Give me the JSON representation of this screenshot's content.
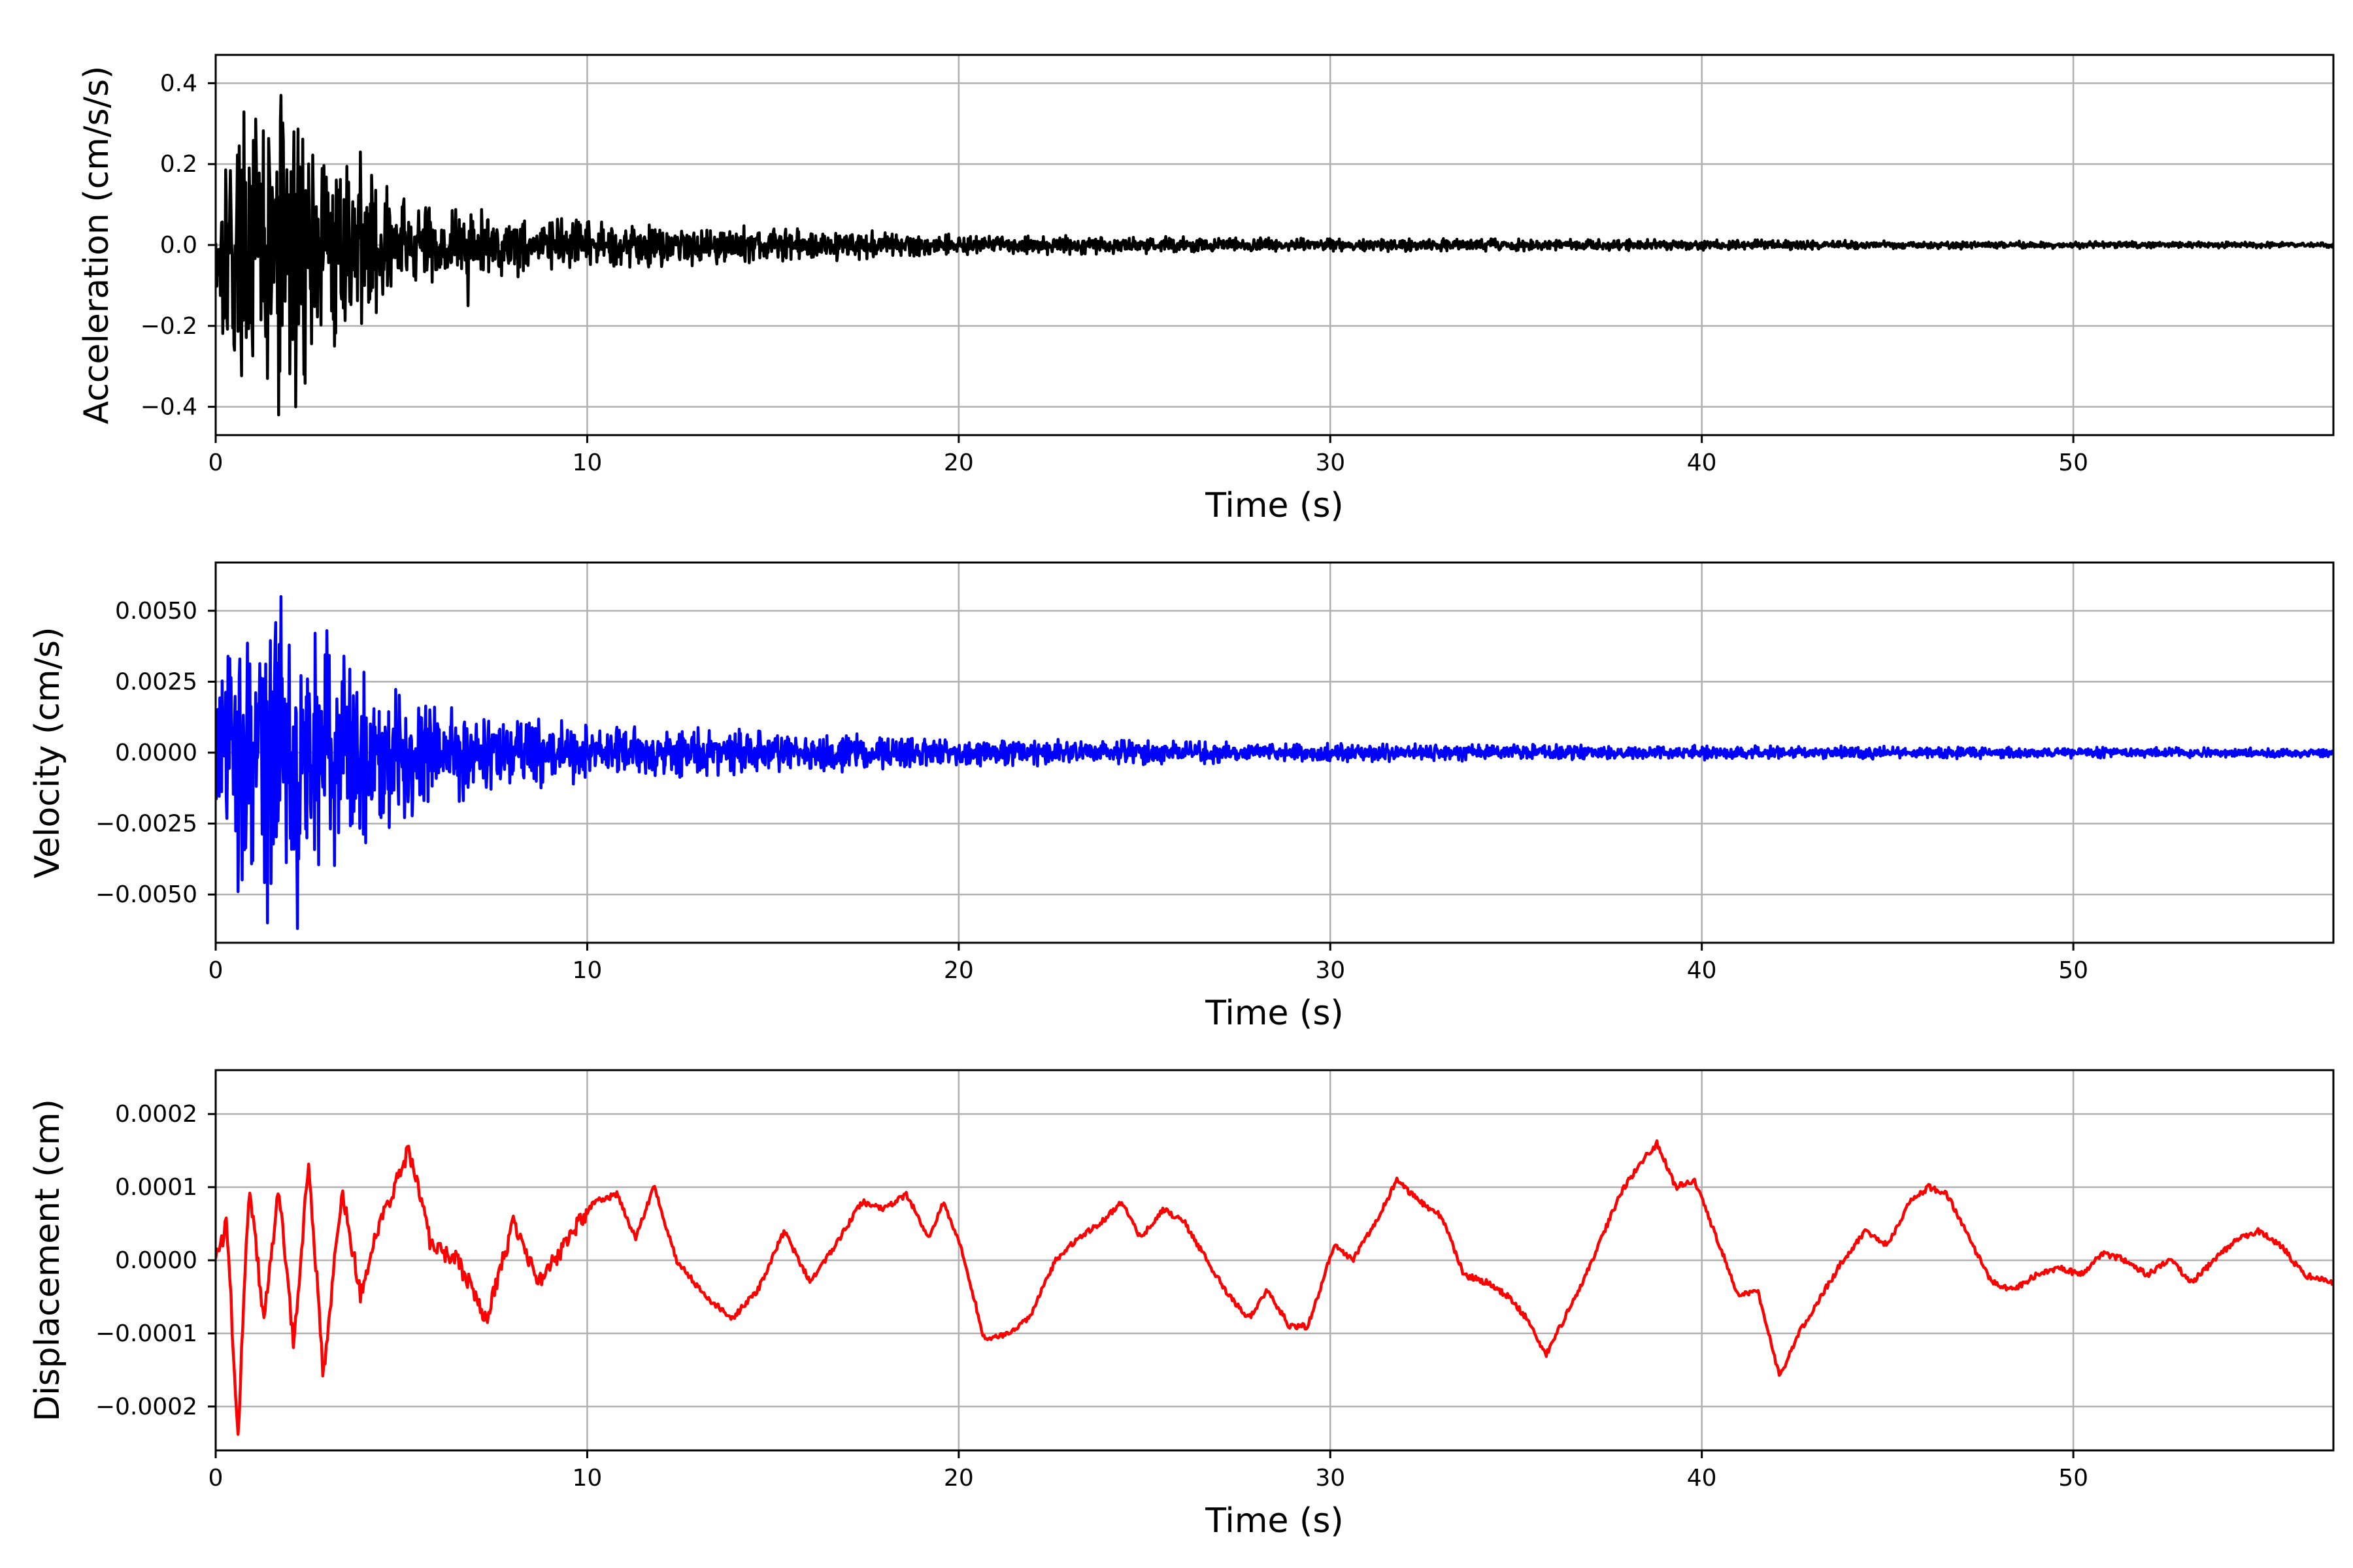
{
  "chart_data": [
    {
      "type": "line",
      "xlabel": "Time (s)",
      "ylabel": "Acceleration (cm/s/s)",
      "xlim": [
        0,
        57
      ],
      "ylim": [
        -0.47,
        0.47
      ],
      "x_ticks": [
        0,
        10,
        20,
        30,
        40,
        50
      ],
      "y_ticks": [
        -0.4,
        -0.2,
        0.0,
        0.2,
        0.4
      ],
      "y_tick_labels": [
        "−0.4",
        "−0.2",
        "0.0",
        "0.2",
        "0.4"
      ],
      "grid": true,
      "line_color": "#000000",
      "envelope": {
        "t": [
          0,
          1,
          2,
          3,
          4,
          5,
          7,
          10,
          15,
          20,
          30,
          40,
          50,
          57
        ],
        "amp": [
          0.2,
          0.27,
          0.32,
          0.18,
          0.15,
          0.1,
          0.07,
          0.045,
          0.035,
          0.02,
          0.013,
          0.01,
          0.007,
          0.005
        ]
      },
      "peaks": [
        {
          "x": 1.75,
          "y": 0.37
        },
        {
          "x": 2.1,
          "y": 0.28
        },
        {
          "x": 3.9,
          "y": 0.23
        },
        {
          "x": 1.7,
          "y": -0.42
        },
        {
          "x": 2.15,
          "y": -0.4
        },
        {
          "x": 1.4,
          "y": -0.33
        },
        {
          "x": 3.2,
          "y": -0.25
        },
        {
          "x": 6.8,
          "y": -0.15
        },
        {
          "x": 0.5,
          "y": -0.26
        }
      ]
    },
    {
      "type": "line",
      "xlabel": "Time (s)",
      "ylabel": "Velocity (cm/s)",
      "xlim": [
        0,
        57
      ],
      "ylim": [
        -0.0067,
        0.0067
      ],
      "x_ticks": [
        0,
        10,
        20,
        30,
        40,
        50
      ],
      "y_ticks": [
        -0.005,
        -0.0025,
        0.0,
        0.0025,
        0.005
      ],
      "y_tick_labels": [
        "−0.0050",
        "−0.0025",
        "0.0000",
        "0.0025",
        "0.0050"
      ],
      "grid": true,
      "line_color": "#0000ff",
      "envelope": {
        "t": [
          0,
          1,
          2,
          3,
          4,
          5,
          7,
          10,
          15,
          20,
          30,
          40,
          50,
          57
        ],
        "amp": [
          0.0025,
          0.0042,
          0.0044,
          0.0032,
          0.0025,
          0.0018,
          0.0012,
          0.0008,
          0.0006,
          0.0004,
          0.00025,
          0.0002,
          0.00015,
          0.00012
        ]
      },
      "peaks": [
        {
          "x": 0.6,
          "y": 0.0058
        },
        {
          "x": 1.75,
          "y": 0.0055
        },
        {
          "x": 3.0,
          "y": 0.0043
        },
        {
          "x": 1.4,
          "y": -0.006
        },
        {
          "x": 2.2,
          "y": -0.0062
        },
        {
          "x": 0.6,
          "y": -0.0049
        }
      ]
    },
    {
      "type": "line",
      "xlabel": "Time (s)",
      "ylabel": "Displacement (cm)",
      "xlim": [
        0,
        57
      ],
      "ylim": [
        -0.00026,
        0.00026
      ],
      "x_ticks": [
        0,
        10,
        20,
        30,
        40,
        50
      ],
      "y_ticks": [
        -0.0002,
        -0.0001,
        0.0,
        0.0001,
        0.0002
      ],
      "y_tick_labels": [
        "−0.0002",
        "−0.0001",
        "0.0000",
        "0.0001",
        "0.0002"
      ],
      "grid": true,
      "line_color": "#ff0000",
      "x": [
        0,
        0.3,
        0.6,
        0.9,
        1.3,
        1.7,
        2.1,
        2.5,
        2.9,
        3.4,
        3.9,
        4.4,
        5.2,
        5.8,
        6.5,
        7.3,
        8.0,
        8.7,
        9.5,
        10.2,
        10.8,
        11.3,
        11.8,
        12.4,
        13.2,
        13.9,
        14.6,
        15.3,
        16.0,
        16.8,
        17.4,
        18.0,
        18.6,
        19.2,
        19.6,
        20.1,
        20.7,
        21.3,
        21.9,
        22.6,
        23.2,
        23.8,
        24.4,
        24.9,
        25.5,
        26.1,
        26.8,
        27.3,
        27.8,
        28.3,
        28.9,
        29.4,
        30.1,
        30.6,
        31.2,
        31.8,
        32.4,
        33.0,
        33.6,
        34.2,
        34.8,
        35.3,
        35.8,
        36.3,
        36.8,
        37.3,
        37.8,
        38.3,
        38.8,
        39.3,
        39.8,
        40.4,
        41.0,
        41.5,
        42.1,
        42.6,
        43.2,
        43.8,
        44.4,
        45.0,
        45.6,
        46.1,
        46.6,
        47.2,
        47.8,
        48.4,
        49.0,
        49.6,
        50.2,
        50.8,
        51.4,
        52.0,
        52.6,
        53.2,
        53.8,
        54.4,
        55.0,
        55.6,
        56.2,
        57.0
      ],
      "y": [
        0.0,
        5e-05,
        -0.00024,
        0.0001,
        -8e-05,
        0.0001,
        -0.00012,
        0.00014,
        -0.00016,
        0.0001,
        -5e-05,
        5e-05,
        0.00015,
        2e-05,
        0.0,
        -8e-05,
        5e-05,
        -3e-05,
        3e-05,
        8e-05,
        9e-05,
        3e-05,
        0.0001,
        0.0,
        -5e-05,
        -8e-05,
        -4e-05,
        4e-05,
        -3e-05,
        3e-05,
        8e-05,
        7e-05,
        9e-05,
        3e-05,
        8e-05,
        1e-05,
        -0.00011,
        -0.0001,
        -8e-05,
        0.0,
        3e-05,
        5e-05,
        8e-05,
        3e-05,
        7e-05,
        5e-05,
        -1e-05,
        -5e-05,
        -8e-05,
        -4e-05,
        -9e-05,
        -9e-05,
        2e-05,
        0.0,
        5e-05,
        0.00011,
        8e-05,
        6e-05,
        -2e-05,
        -3e-05,
        -5e-05,
        -8e-05,
        -0.00013,
        -8e-05,
        -3e-05,
        3e-05,
        9e-05,
        0.00013,
        0.00016,
        0.0001,
        0.00011,
        3e-05,
        -5e-05,
        -4e-05,
        -0.00016,
        -0.0001,
        -5e-05,
        0.0,
        4e-05,
        2e-05,
        8e-05,
        0.0001,
        9e-05,
        3e-05,
        -3e-05,
        -4e-05,
        -2e-05,
        -1e-05,
        -2e-05,
        1e-05,
        0.0,
        -2e-05,
        0.0,
        -3e-05,
        0.0,
        3e-05,
        4e-05,
        2e-05,
        -2e-05,
        -3e-05
      ]
    }
  ]
}
